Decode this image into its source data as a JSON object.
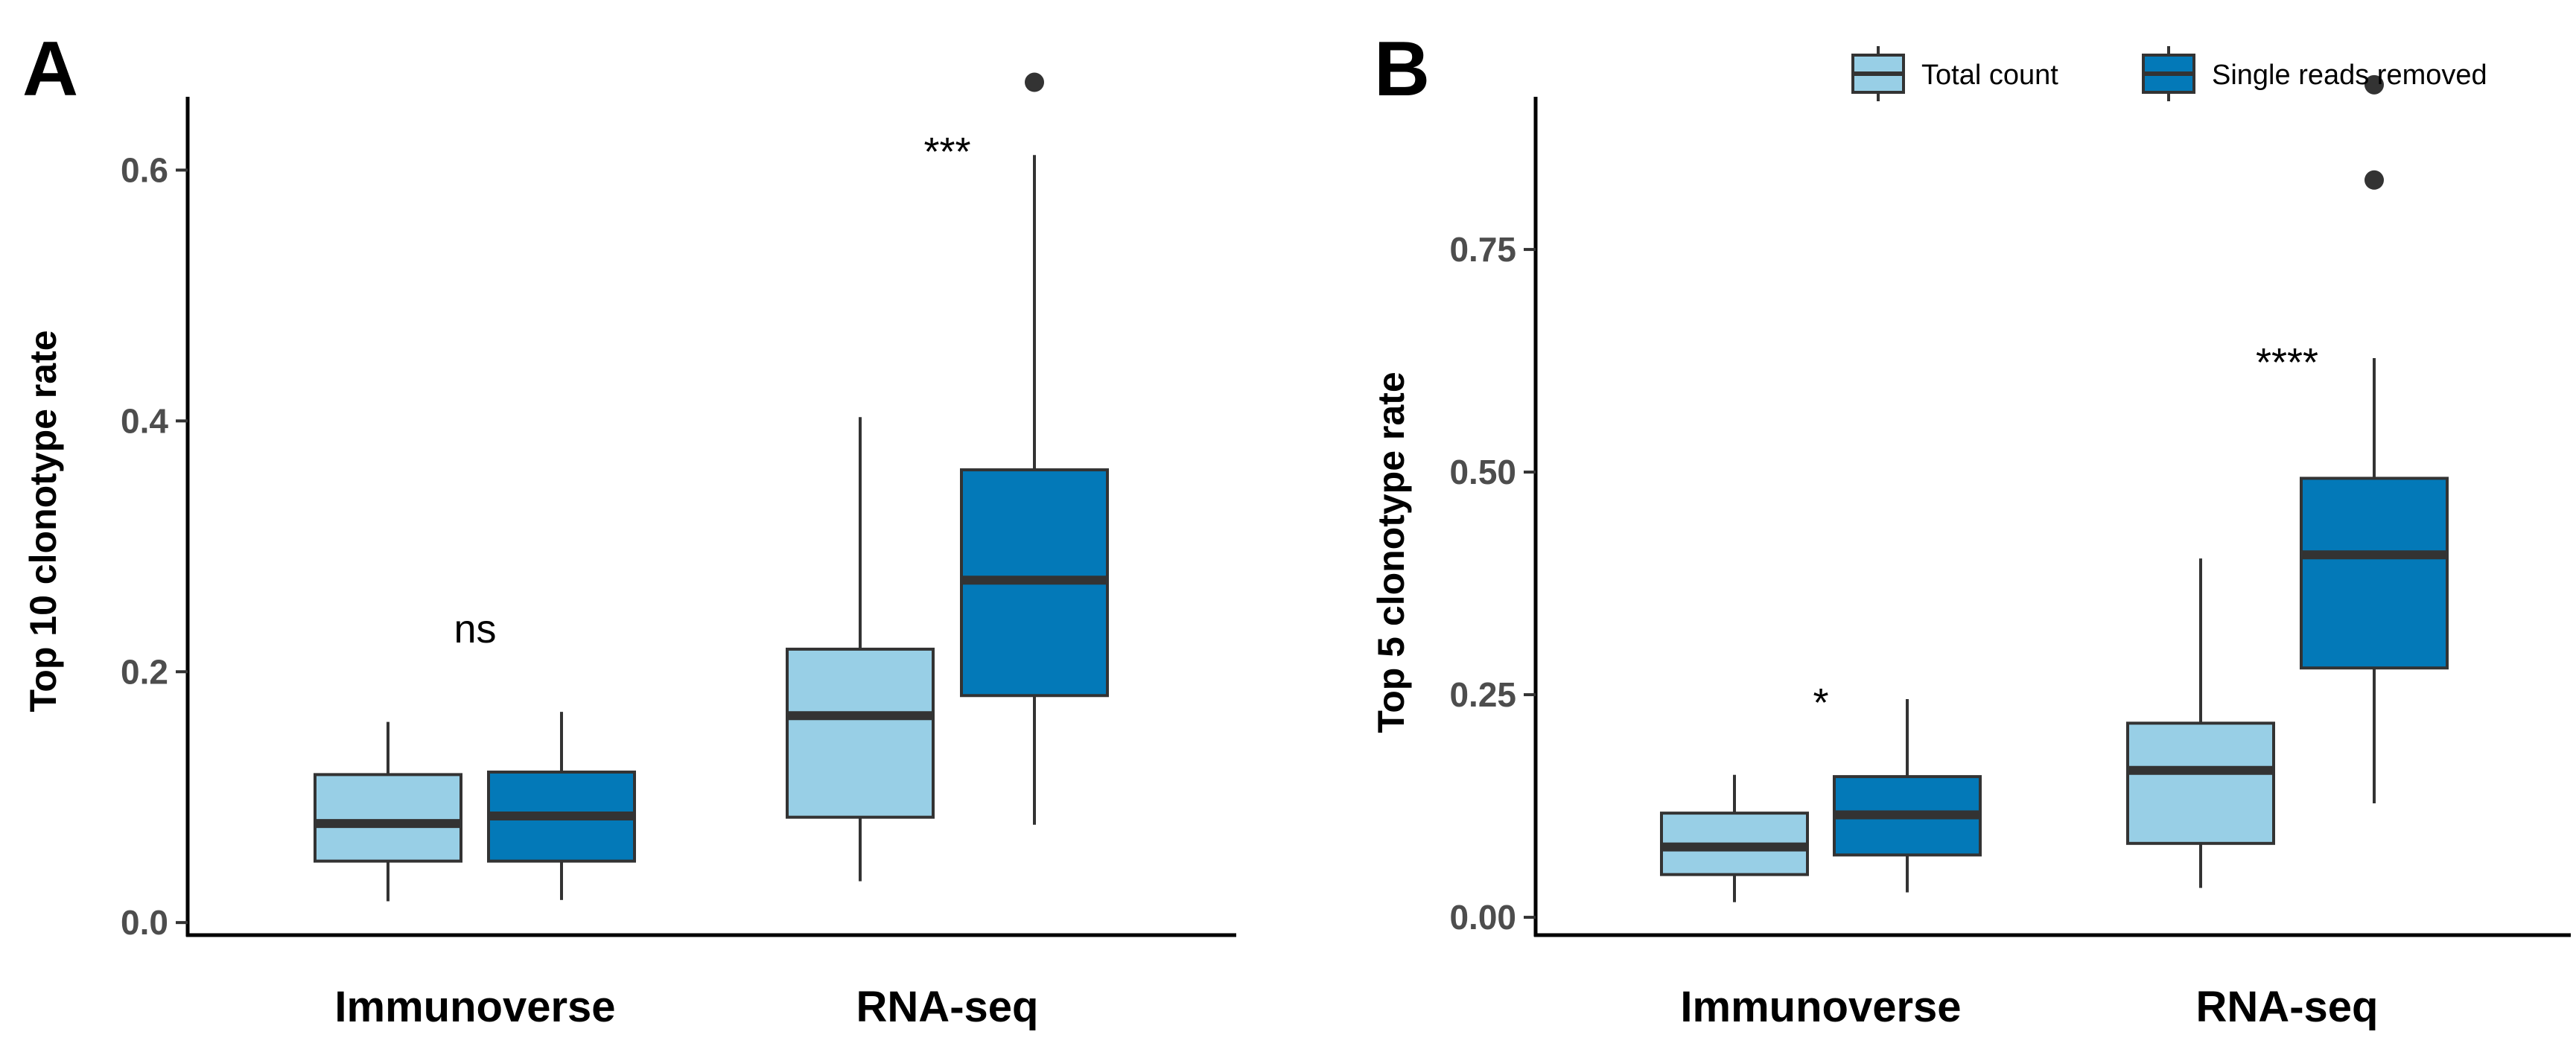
{
  "chart_data": [
    {
      "type": "boxplot",
      "panel": "A",
      "ylabel": "Top 10 clonotype rate",
      "ylim": [
        -0.01,
        0.7
      ],
      "ticks": [
        0.0,
        0.2,
        0.4,
        0.6
      ],
      "tick_labels": [
        "0.0",
        "0.2",
        "0.4",
        "0.6"
      ],
      "categories": [
        "Immunoverse",
        "RNA-seq"
      ],
      "annotations": [
        "ns",
        "***"
      ],
      "series": [
        {
          "name": "Total count",
          "color": "#98cfe6",
          "boxes": [
            {
              "min": 0.017,
              "q1": 0.049,
              "median": 0.079,
              "q3": 0.118,
              "max": 0.16,
              "outliers": []
            },
            {
              "min": 0.033,
              "q1": 0.084,
              "median": 0.165,
              "q3": 0.218,
              "max": 0.403,
              "outliers": []
            }
          ]
        },
        {
          "name": "Single reads removed",
          "color": "#0379b8",
          "boxes": [
            {
              "min": 0.018,
              "q1": 0.049,
              "median": 0.085,
              "q3": 0.12,
              "max": 0.168,
              "outliers": []
            },
            {
              "min": 0.078,
              "q1": 0.181,
              "median": 0.273,
              "q3": 0.361,
              "max": 0.612,
              "outliers": [
                0.67
              ]
            }
          ]
        }
      ]
    },
    {
      "type": "boxplot",
      "panel": "B",
      "ylabel": "Top 5 clonotype rate",
      "ylim": [
        -0.02,
        0.98
      ],
      "ticks": [
        0.0,
        0.25,
        0.5,
        0.75
      ],
      "tick_labels": [
        "0.00",
        "0.25",
        "0.50",
        "0.75"
      ],
      "categories": [
        "Immunoverse",
        "RNA-seq"
      ],
      "annotations": [
        "*",
        "****"
      ],
      "legend": {
        "position": "top-right",
        "entries": [
          "Total count",
          "Single reads removed"
        ]
      },
      "series": [
        {
          "name": "Total count",
          "color": "#98cfe6",
          "boxes": [
            {
              "min": 0.017,
              "q1": 0.048,
              "median": 0.079,
              "q3": 0.117,
              "max": 0.16,
              "outliers": []
            },
            {
              "min": 0.033,
              "q1": 0.083,
              "median": 0.165,
              "q3": 0.218,
              "max": 0.403,
              "outliers": []
            }
          ]
        },
        {
          "name": "Single reads removed",
          "color": "#0379b8",
          "boxes": [
            {
              "min": 0.028,
              "q1": 0.07,
              "median": 0.115,
              "q3": 0.158,
              "max": 0.245,
              "outliers": []
            },
            {
              "min": 0.128,
              "q1": 0.28,
              "median": 0.407,
              "q3": 0.493,
              "max": 0.628,
              "outliers": [
                0.828,
                0.935
              ]
            }
          ]
        }
      ]
    }
  ]
}
